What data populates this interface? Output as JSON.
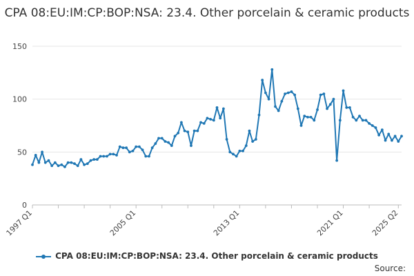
{
  "chart_data": {
    "type": "line",
    "title": "CPA 08:EU:IM:CP:BOP:NSA: 23.4. Other porcelain & ceramic products",
    "xlabel": "",
    "ylabel": "",
    "ylim": [
      0,
      150
    ],
    "yticks": [
      0,
      50,
      100,
      150
    ],
    "grid": true,
    "legend_position": "bottom",
    "x_tick_labels": [
      "1997 Q1",
      "2005 Q1",
      "2013 Q1",
      "2021 Q1",
      "2025 Q2"
    ],
    "x_ticks": [
      "1997 Q1",
      "1999 Q1",
      "2001 Q1",
      "2003 Q1",
      "2005 Q1",
      "2007 Q1",
      "2009 Q1",
      "2011 Q1",
      "2013 Q1",
      "2015 Q1",
      "2017 Q1",
      "2019 Q1",
      "2021 Q1",
      "2023 Q1",
      "2025 Q2"
    ],
    "x_start": "1997 Q1",
    "color": "#1f77b4",
    "series": [
      {
        "name": "CPA 08:EU:IM:CP:BOP:NSA: 23.4. Other porcelain & ceramic products",
        "values": [
          38,
          47,
          40,
          50,
          40,
          42,
          37,
          40,
          37,
          38,
          36,
          40,
          40,
          39,
          37,
          43,
          38,
          39,
          42,
          43,
          43,
          46,
          46,
          46,
          48,
          48,
          47,
          55,
          54,
          54,
          50,
          51,
          55,
          55,
          52,
          46,
          46,
          54,
          58,
          63,
          63,
          60,
          59,
          56,
          65,
          68,
          78,
          70,
          69,
          56,
          70,
          70,
          78,
          77,
          82,
          81,
          80,
          92,
          82,
          91,
          62,
          50,
          48,
          46,
          51,
          51,
          56,
          70,
          60,
          62,
          85,
          118,
          106,
          100,
          128,
          93,
          89,
          98,
          105,
          106,
          107,
          104,
          91,
          75,
          84,
          83,
          83,
          80,
          90,
          104,
          105,
          91,
          95,
          100,
          42,
          80,
          108,
          92,
          92,
          83,
          80,
          84,
          80,
          80,
          77,
          75,
          73,
          66,
          71,
          61,
          67,
          61,
          65,
          60,
          65
        ]
      }
    ]
  },
  "source_label": "Source:"
}
